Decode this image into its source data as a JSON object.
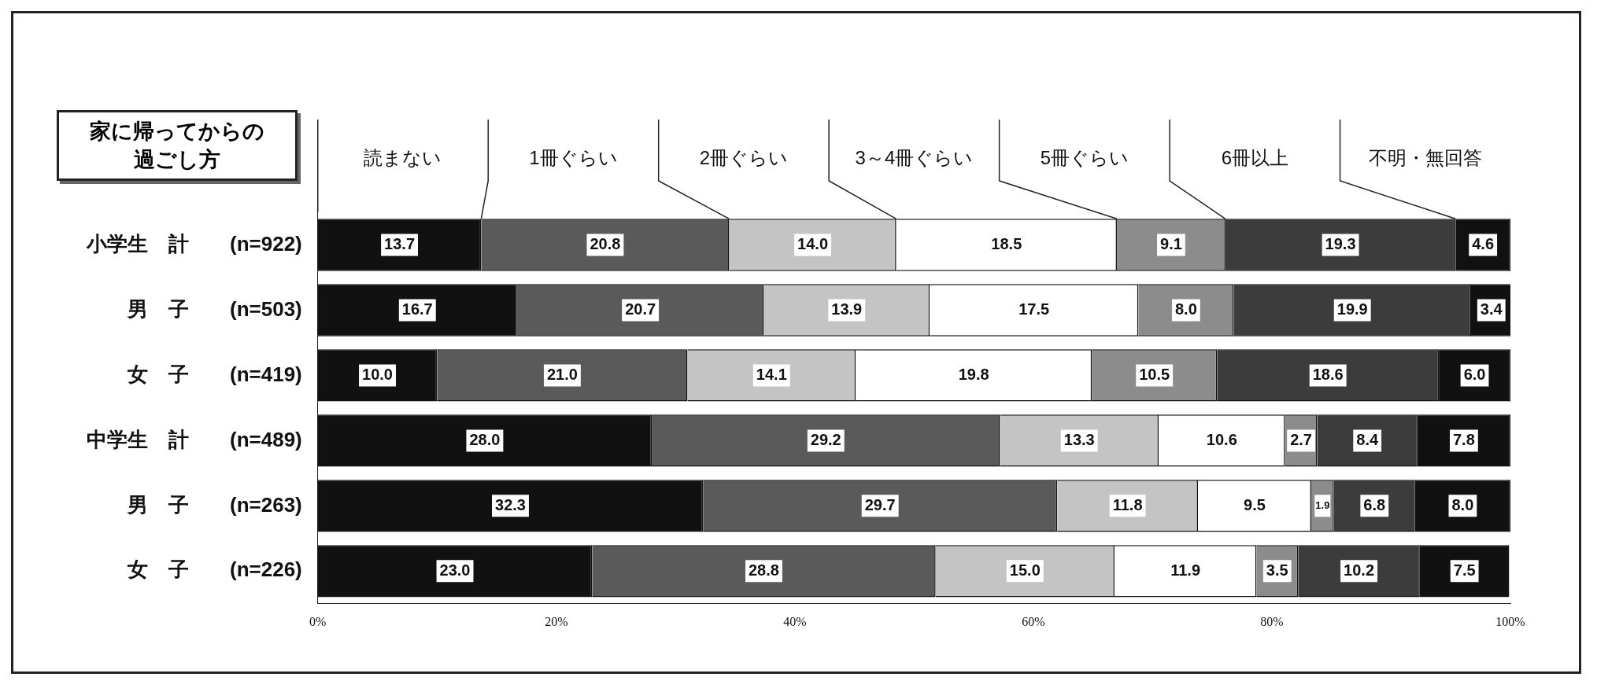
{
  "chart_data": {
    "type": "bar",
    "orientation": "horizontal",
    "stacked": true,
    "title": "家に帰ってからの過ごし方",
    "categories": [
      "小学生　計　　(n=922)",
      "男　子　　(n=503)",
      "女　子　　(n=419)",
      "中学生　計　　(n=489)",
      "男　子　　(n=263)",
      "女　子　　(n=226)"
    ],
    "series": [
      {
        "name": "読まない",
        "color": "#111111",
        "values": [
          13.7,
          16.7,
          10.0,
          28.0,
          32.3,
          23.0
        ],
        "value_labels": [
          "13.7",
          "16.7",
          "10.0",
          "28.0",
          "32.3",
          "23.0"
        ]
      },
      {
        "name": "1冊ぐらい",
        "color": "#5a5a5a",
        "values": [
          20.8,
          20.7,
          21.0,
          29.2,
          29.7,
          28.8
        ],
        "value_labels": [
          "20.8",
          "20.7",
          "21.0",
          "29.2",
          "29.7",
          "28.8"
        ]
      },
      {
        "name": "2冊ぐらい",
        "color": "#c4c4c4",
        "values": [
          14.0,
          13.9,
          14.1,
          13.3,
          11.8,
          15.0
        ],
        "value_labels": [
          "14.0",
          "13.9",
          "14.1",
          "13.3",
          "11.8",
          "15.0"
        ]
      },
      {
        "name": "3～4冊ぐらい",
        "color": "#ffffff",
        "values": [
          18.5,
          17.5,
          19.8,
          10.6,
          9.5,
          11.9
        ],
        "value_labels": [
          "18.5",
          "17.5",
          "19.8",
          "10.6",
          "9.5",
          "11.9"
        ]
      },
      {
        "name": "5冊ぐらい",
        "color": "#8c8c8c",
        "values": [
          9.1,
          8.0,
          10.5,
          2.7,
          1.9,
          3.5
        ],
        "value_labels": [
          "9.1",
          "8.0",
          "10.5",
          "2.7",
          "1.9",
          "3.5"
        ]
      },
      {
        "name": "6冊以上",
        "color": "#3c3c3c",
        "values": [
          19.3,
          19.9,
          18.6,
          8.4,
          6.8,
          10.2
        ],
        "value_labels": [
          "19.3",
          "19.9",
          "18.6",
          "8.4",
          "6.8",
          "10.2"
        ]
      },
      {
        "name": "不明・無回答",
        "color": "#111111",
        "values": [
          4.6,
          3.4,
          6.0,
          7.8,
          8.0,
          7.5
        ],
        "value_labels": [
          "4.6",
          "3.4",
          "6.0",
          "7.8",
          "8.0",
          "7.5"
        ]
      }
    ],
    "xlim": [
      0,
      100
    ],
    "xticks": [
      {
        "value": 0,
        "label": "0%"
      },
      {
        "value": 20,
        "label": "20%"
      },
      {
        "value": 40,
        "label": "40%"
      },
      {
        "value": 60,
        "label": "60%"
      },
      {
        "value": 80,
        "label": "80%"
      },
      {
        "value": 100,
        "label": "100%"
      }
    ],
    "grid": false,
    "legend": "top"
  }
}
